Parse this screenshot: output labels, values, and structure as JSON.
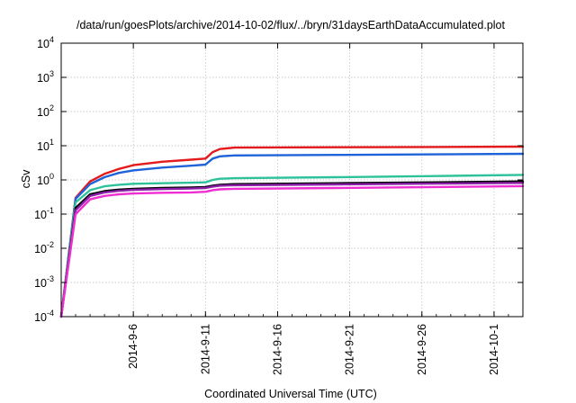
{
  "chart_data": {
    "type": "line",
    "title": "/data/run/goesPlots/archive/2014-10-02/flux/../bryn/31daysEarthDataAccumulated.plot",
    "xlabel": "Coordinated Universal Time (UTC)",
    "ylabel": "cSv",
    "y_scale": "log",
    "ylim": [
      0.0001,
      10000
    ],
    "xlim": [
      "2014-09-01",
      "2014-10-03"
    ],
    "grid": true,
    "legend": "none",
    "x_ticks": [
      {
        "date": "2014-09-06",
        "label": "2014-9-6"
      },
      {
        "date": "2014-09-11",
        "label": "2014-9-11"
      },
      {
        "date": "2014-09-16",
        "label": "2014-9-16"
      },
      {
        "date": "2014-09-21",
        "label": "2014-9-21"
      },
      {
        "date": "2014-09-26",
        "label": "2014-9-26"
      },
      {
        "date": "2014-10-01",
        "label": "2014-10-1"
      }
    ],
    "y_ticks": [
      {
        "value": 0.0001,
        "base": "10",
        "exp": "-4"
      },
      {
        "value": 0.001,
        "base": "10",
        "exp": "-3"
      },
      {
        "value": 0.01,
        "base": "10",
        "exp": "-2"
      },
      {
        "value": 0.1,
        "base": "10",
        "exp": "-1"
      },
      {
        "value": 1,
        "base": "10",
        "exp": "0"
      },
      {
        "value": 10,
        "base": "10",
        "exp": "1"
      },
      {
        "value": 100,
        "base": "10",
        "exp": "2"
      },
      {
        "value": 1000,
        "base": "10",
        "exp": "3"
      },
      {
        "value": 10000,
        "base": "10",
        "exp": "4"
      }
    ],
    "series": [
      {
        "color": "#e41a1c",
        "x": [
          "2014-09-01",
          "2014-09-02",
          "2014-09-03",
          "2014-09-04",
          "2014-09-05",
          "2014-09-06",
          "2014-09-08",
          "2014-09-10",
          "2014-09-11",
          "2014-09-11T12:00",
          "2014-09-12",
          "2014-09-13",
          "2014-09-20",
          "2014-09-27",
          "2014-10-03"
        ],
        "values": [
          0.0001,
          0.3,
          0.9,
          1.5,
          2.1,
          2.7,
          3.4,
          3.9,
          4.2,
          6.5,
          8.0,
          8.8,
          9.0,
          9.2,
          9.4
        ]
      },
      {
        "color": "#1f63d8",
        "x": [
          "2014-09-01",
          "2014-09-02",
          "2014-09-03",
          "2014-09-04",
          "2014-09-05",
          "2014-09-06",
          "2014-09-08",
          "2014-09-10",
          "2014-09-11",
          "2014-09-11T12:00",
          "2014-09-12",
          "2014-09-13",
          "2014-09-20",
          "2014-09-27",
          "2014-10-03"
        ],
        "values": [
          0.0001,
          0.28,
          0.75,
          1.2,
          1.6,
          1.9,
          2.3,
          2.6,
          2.8,
          4.2,
          4.9,
          5.2,
          5.4,
          5.6,
          5.8
        ]
      },
      {
        "color": "#2ec29a",
        "x": [
          "2014-09-01",
          "2014-09-02",
          "2014-09-03",
          "2014-09-04",
          "2014-09-05",
          "2014-09-06",
          "2014-09-08",
          "2014-09-10",
          "2014-09-11",
          "2014-09-11T12:00",
          "2014-09-12",
          "2014-09-13",
          "2014-09-20",
          "2014-09-27",
          "2014-10-03"
        ],
        "values": [
          0.0001,
          0.22,
          0.5,
          0.65,
          0.72,
          0.77,
          0.8,
          0.83,
          0.85,
          1.0,
          1.08,
          1.12,
          1.2,
          1.3,
          1.4
        ]
      },
      {
        "color": "#000000",
        "x": [
          "2014-09-01",
          "2014-09-02",
          "2014-09-03",
          "2014-09-04",
          "2014-09-05",
          "2014-09-06",
          "2014-09-08",
          "2014-09-10",
          "2014-09-11",
          "2014-09-11T12:00",
          "2014-09-12",
          "2014-09-13",
          "2014-09-20",
          "2014-09-27",
          "2014-10-03"
        ],
        "values": [
          0.0001,
          0.15,
          0.38,
          0.47,
          0.52,
          0.55,
          0.58,
          0.6,
          0.62,
          0.68,
          0.72,
          0.75,
          0.8,
          0.85,
          0.9
        ]
      },
      {
        "color": "#8b1fa8",
        "x": [
          "2014-09-01",
          "2014-09-02",
          "2014-09-03",
          "2014-09-04",
          "2014-09-05",
          "2014-09-06",
          "2014-09-08",
          "2014-09-10",
          "2014-09-11",
          "2014-09-11T12:00",
          "2014-09-12",
          "2014-09-13",
          "2014-09-20",
          "2014-09-27",
          "2014-10-03"
        ],
        "values": [
          0.0001,
          0.13,
          0.34,
          0.43,
          0.48,
          0.51,
          0.54,
          0.56,
          0.58,
          0.64,
          0.68,
          0.7,
          0.74,
          0.78,
          0.82
        ]
      },
      {
        "color": "#ee2ed0",
        "x": [
          "2014-09-01",
          "2014-09-02",
          "2014-09-03",
          "2014-09-04",
          "2014-09-05",
          "2014-09-06",
          "2014-09-08",
          "2014-09-10",
          "2014-09-11",
          "2014-09-11T12:00",
          "2014-09-12",
          "2014-09-13",
          "2014-09-20",
          "2014-09-27",
          "2014-10-03"
        ],
        "values": [
          0.0001,
          0.1,
          0.27,
          0.34,
          0.38,
          0.4,
          0.42,
          0.43,
          0.45,
          0.5,
          0.53,
          0.55,
          0.58,
          0.62,
          0.66
        ]
      }
    ]
  }
}
